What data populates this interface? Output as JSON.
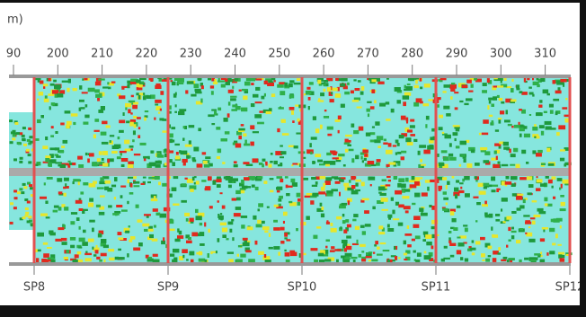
{
  "header": {
    "title": "m)"
  },
  "axis": {
    "ticks": [
      "90",
      "200",
      "210",
      "220",
      "230",
      "240",
      "250",
      "260",
      "270",
      "280",
      "290",
      "300",
      "310"
    ]
  },
  "stations": [
    "SP8",
    "SP9",
    "SP10",
    "SP11",
    "SP12"
  ]
}
